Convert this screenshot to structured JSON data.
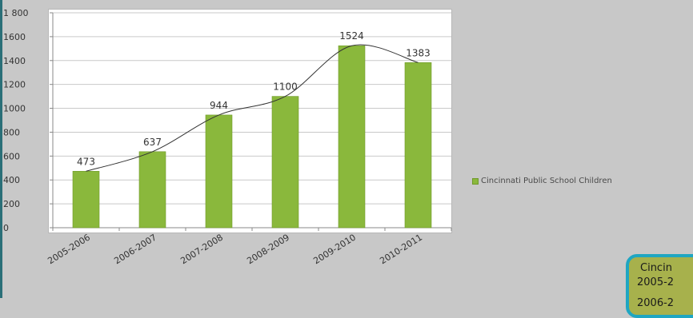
{
  "chart_data": {
    "type": "bar",
    "categories": [
      "2005-2006",
      "2006-2007",
      "2007-2008",
      "2008-2009",
      "2009-2010",
      "2010-2011"
    ],
    "series": [
      {
        "name": "Cincinnati Public School Children",
        "values": [
          473,
          637,
          944,
          1100,
          1524,
          1383
        ]
      }
    ],
    "data_labels": [
      "473",
      "637",
      "944",
      "1100",
      "1524",
      "1383"
    ],
    "ylim": [
      0,
      1800
    ],
    "yticks": [
      0,
      200,
      400,
      600,
      800,
      1000,
      1200,
      1400,
      1600,
      1800
    ],
    "ytick_labels": [
      "0",
      "200",
      "400",
      "600",
      "800",
      "1000",
      "1200",
      "1400",
      "1600",
      "1 800"
    ],
    "trendline": true,
    "legend_position": "right",
    "grid": true,
    "colors": {
      "bar": "#8ab83c",
      "bar_edge": "#6f9a2a",
      "trendline": "#333333",
      "grid": "#c9c9c9"
    }
  },
  "legend": {
    "label": "Cincinnati Public School Children"
  },
  "table_snippet": {
    "rows": [
      "Cincin",
      "2005-2",
      "2006-2"
    ]
  },
  "colors": {
    "background": "#c8c8c8",
    "table_bg": "#a7b14c",
    "table_border": "#1fa6c2"
  }
}
